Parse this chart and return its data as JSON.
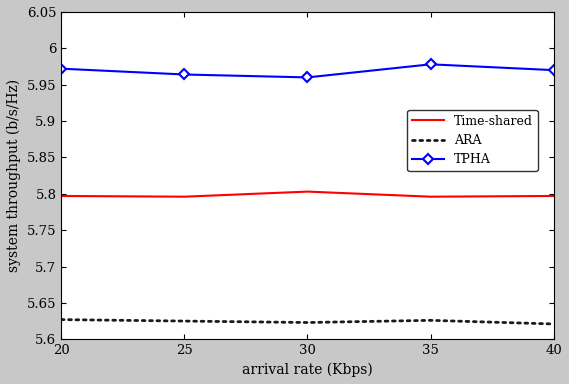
{
  "x": [
    20,
    25,
    30,
    35,
    40
  ],
  "time_shared": [
    5.797,
    5.796,
    5.803,
    5.796,
    5.797
  ],
  "ara": [
    5.627,
    5.625,
    5.623,
    5.626,
    5.621
  ],
  "tpha": [
    5.972,
    5.964,
    5.96,
    5.978,
    5.97
  ],
  "xlabel": "arrival rate (Kbps)",
  "ylabel": "system throughput (b/s/Hz)",
  "xlim": [
    20,
    40
  ],
  "ylim": [
    5.6,
    6.05
  ],
  "ytick_values": [
    5.6,
    5.65,
    5.7,
    5.75,
    5.8,
    5.85,
    5.9,
    5.95,
    6.0,
    6.05
  ],
  "ytick_labels": [
    "5.6",
    "5.65",
    "5.7",
    "5.75",
    "5.8",
    "5.85",
    "5.9",
    "5.95",
    "6",
    "6.05"
  ],
  "xticks": [
    20,
    25,
    30,
    35,
    40
  ],
  "line_colors": {
    "time_shared": "#ff0000",
    "ara": "#1a1a1a",
    "tpha": "#0000ff"
  },
  "legend_labels": [
    "Time-shared",
    "ARA",
    "TPHA"
  ],
  "background_color": "#ffffff",
  "axes_bg_color": "#ffffff",
  "figure_bg_color": "#d3d3d3"
}
